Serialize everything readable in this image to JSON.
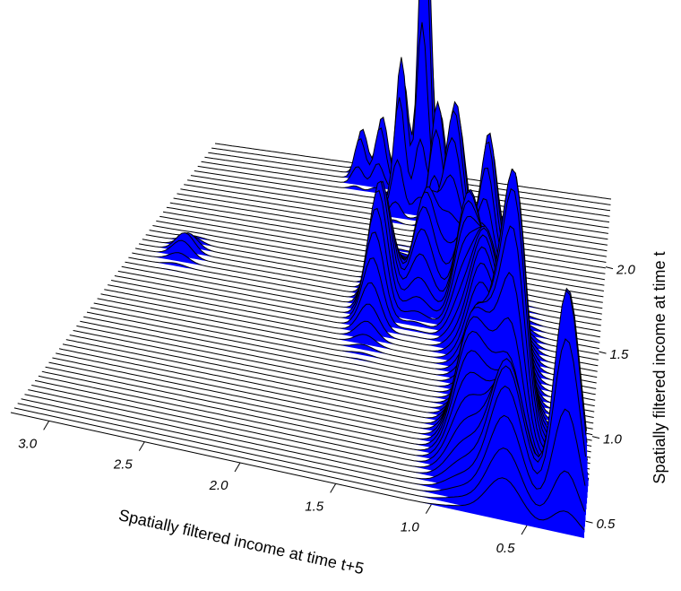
{
  "chart_data": {
    "type": "surface",
    "title": "",
    "xlabel": "Spatially filtered income at time t+5",
    "ylabel": "Spatially filtered income at time t",
    "x_ticks": [
      "3.0",
      "2.5",
      "2.0",
      "1.5",
      "1.0",
      "0.5"
    ],
    "x_tick_values": [
      3.0,
      2.5,
      2.0,
      1.5,
      1.0,
      0.5
    ],
    "y_ticks": [
      "2.0",
      "1.5",
      "1.0",
      "0.5"
    ],
    "y_tick_values": [
      2.0,
      1.5,
      1.0,
      0.5
    ],
    "xlim": [
      0.2,
      3.2
    ],
    "ylim": [
      0.4,
      2.4
    ],
    "surface_color": "#0000ff",
    "line_color": "#000000",
    "density_peaks": [
      {
        "x_t5": 0.3,
        "y_t": 0.55,
        "height": 0.7,
        "sx": 0.07,
        "sy": 0.07
      },
      {
        "x_t5": 0.62,
        "y_t": 0.55,
        "height": 0.4,
        "sx": 0.09,
        "sy": 0.1
      },
      {
        "x_t5": 0.62,
        "y_t": 0.9,
        "height": 0.6,
        "sx": 0.06,
        "sy": 0.1
      },
      {
        "x_t5": 0.7,
        "y_t": 1.05,
        "height": 0.45,
        "sx": 0.07,
        "sy": 0.2
      },
      {
        "x_t5": 0.85,
        "y_t": 0.8,
        "height": 0.4,
        "sx": 0.09,
        "sy": 0.15
      },
      {
        "x_t5": 0.9,
        "y_t": 1.4,
        "height": 0.35,
        "sx": 0.08,
        "sy": 0.15
      },
      {
        "x_t5": 1.05,
        "y_t": 1.6,
        "height": 0.35,
        "sx": 0.07,
        "sy": 0.12
      },
      {
        "x_t5": 1.0,
        "y_t": 1.95,
        "height": 0.38,
        "sx": 0.05,
        "sy": 0.08
      },
      {
        "x_t5": 1.2,
        "y_t": 1.85,
        "height": 0.5,
        "sx": 0.06,
        "sy": 0.09
      },
      {
        "x_t5": 1.35,
        "y_t": 1.7,
        "height": 0.3,
        "sx": 0.07,
        "sy": 0.1
      },
      {
        "x_t5": 1.4,
        "y_t": 2.1,
        "height": 0.38,
        "sx": 0.05,
        "sy": 0.06
      },
      {
        "x_t5": 1.55,
        "y_t": 2.25,
        "height": 1.0,
        "sx": 0.04,
        "sy": 0.05
      },
      {
        "x_t5": 1.6,
        "y_t": 1.55,
        "height": 0.38,
        "sx": 0.06,
        "sy": 0.12
      },
      {
        "x_t5": 1.7,
        "y_t": 2.2,
        "height": 0.45,
        "sx": 0.04,
        "sy": 0.05
      },
      {
        "x_t5": 1.9,
        "y_t": 2.32,
        "height": 0.2,
        "sx": 0.04,
        "sy": 0.04
      },
      {
        "x_t5": 2.05,
        "y_t": 2.32,
        "height": 0.15,
        "sx": 0.04,
        "sy": 0.04
      },
      {
        "x_t5": 2.9,
        "y_t": 1.65,
        "height": 0.06,
        "sx": 0.06,
        "sy": 0.05
      }
    ]
  }
}
